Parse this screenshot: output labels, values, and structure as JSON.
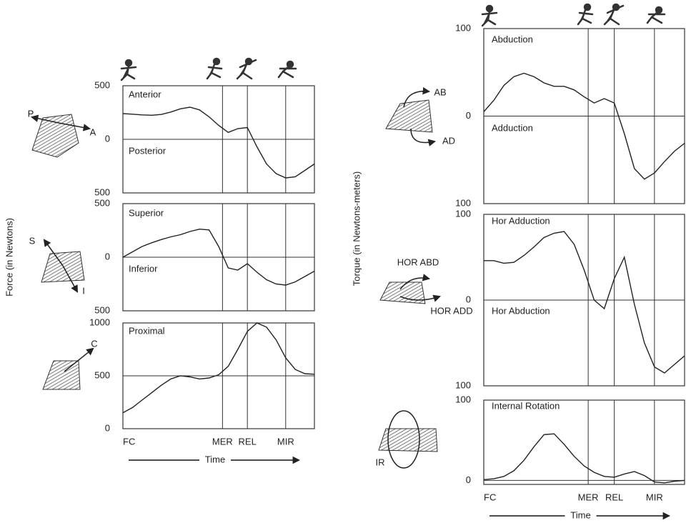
{
  "chart_data": [
    {
      "type": "line",
      "ylabel": "Force (in Newtons)",
      "annotations": [
        "Anterior",
        "Posterior",
        "P",
        "A"
      ],
      "xlim": [
        0,
        100
      ],
      "ylim": [
        -500,
        500
      ],
      "yticks": [
        {
          "value": 500,
          "label": "500"
        },
        0,
        {
          "value": -500,
          "label": "500"
        }
      ],
      "vlines": [
        52,
        65,
        85
      ],
      "color": "#222222",
      "x": [
        0,
        5,
        10,
        15,
        20,
        25,
        30,
        35,
        40,
        45,
        50,
        55,
        60,
        65,
        70,
        75,
        80,
        85,
        90,
        95,
        100
      ],
      "values": [
        240,
        235,
        228,
        225,
        232,
        255,
        285,
        300,
        275,
        210,
        130,
        65,
        100,
        110,
        -70,
        -230,
        -320,
        -360,
        -350,
        -290,
        -230
      ]
    },
    {
      "type": "line",
      "annotations": [
        "Superior",
        "Inferior",
        "S",
        "I"
      ],
      "xlim": [
        0,
        100
      ],
      "ylim": [
        -500,
        500
      ],
      "yticks": [
        {
          "value": 500,
          "label": "500"
        },
        0,
        {
          "value": -500,
          "label": "500"
        }
      ],
      "vlines": [
        52,
        65,
        85
      ],
      "color": "#222222",
      "x": [
        0,
        5,
        10,
        15,
        20,
        25,
        30,
        35,
        40,
        45,
        50,
        55,
        60,
        65,
        70,
        75,
        80,
        85,
        90,
        95,
        100
      ],
      "values": [
        0,
        50,
        100,
        135,
        165,
        190,
        210,
        240,
        262,
        255,
        100,
        -100,
        -120,
        -60,
        -140,
        -210,
        -250,
        -260,
        -230,
        -180,
        -130
      ]
    },
    {
      "type": "line",
      "annotations": [
        "Proximal",
        "C"
      ],
      "xlabel": "Time",
      "xlim": [
        0,
        100
      ],
      "ylim": [
        0,
        1000
      ],
      "yticks": [
        1000,
        500,
        0
      ],
      "xticks": [
        {
          "value": 0,
          "label": "FC"
        },
        {
          "value": 52,
          "label": "MER"
        },
        {
          "value": 65,
          "label": "REL"
        },
        {
          "value": 85,
          "label": "MIR"
        }
      ],
      "color": "#222222",
      "x": [
        0,
        5,
        10,
        15,
        20,
        25,
        30,
        35,
        40,
        45,
        50,
        55,
        60,
        65,
        70,
        75,
        80,
        85,
        90,
        95,
        100
      ],
      "values": [
        150,
        200,
        270,
        340,
        410,
        470,
        500,
        490,
        470,
        480,
        510,
        590,
        750,
        920,
        1000,
        960,
        840,
        670,
        560,
        520,
        515
      ]
    },
    {
      "type": "line",
      "ylabel": "Torque (in Newtons-meters)",
      "annotations": [
        "Abduction",
        "Adduction",
        "AB",
        "AD"
      ],
      "xlim": [
        0,
        100
      ],
      "ylim": [
        -100,
        100
      ],
      "yticks": [
        100,
        0,
        {
          "value": -100,
          "label": "100"
        }
      ],
      "vlines": [
        52,
        65,
        85
      ],
      "color": "#222222",
      "x": [
        0,
        5,
        10,
        15,
        20,
        25,
        30,
        35,
        40,
        45,
        50,
        55,
        60,
        65,
        70,
        75,
        80,
        85,
        90,
        95,
        100
      ],
      "values": [
        5,
        18,
        35,
        45,
        49,
        45,
        38,
        34,
        34,
        30,
        22,
        15,
        20,
        15,
        -20,
        -60,
        -72,
        -65,
        -52,
        -40,
        -31
      ]
    },
    {
      "type": "line",
      "annotations": [
        "Hor Adduction",
        "Hor Abduction",
        "HOR ABD",
        "HOR ADD"
      ],
      "xlim": [
        0,
        100
      ],
      "ylim": [
        -100,
        100
      ],
      "yticks": [
        100,
        0,
        {
          "value": -100,
          "label": "100"
        }
      ],
      "vlines": [
        52,
        65,
        85
      ],
      "color": "#222222",
      "x": [
        0,
        5,
        10,
        15,
        20,
        25,
        30,
        35,
        40,
        45,
        50,
        55,
        60,
        65,
        70,
        75,
        80,
        85,
        90,
        95,
        100
      ],
      "values": [
        46,
        46,
        43,
        44,
        52,
        62,
        73,
        78,
        80,
        65,
        35,
        0,
        -10,
        25,
        50,
        -5,
        -50,
        -78,
        -85,
        -75,
        -65
      ]
    },
    {
      "type": "line",
      "annotations": [
        "Internal Rotation",
        "IR"
      ],
      "xlabel": "Time",
      "xlim": [
        0,
        100
      ],
      "ylim": [
        -5,
        100
      ],
      "yticks": [
        100,
        0
      ],
      "xticks": [
        {
          "value": 0,
          "label": "FC"
        },
        {
          "value": 52,
          "label": "MER"
        },
        {
          "value": 65,
          "label": "REL"
        },
        {
          "value": 85,
          "label": "MIR"
        }
      ],
      "color": "#222222",
      "x": [
        0,
        5,
        10,
        15,
        20,
        25,
        30,
        35,
        40,
        45,
        50,
        55,
        60,
        65,
        70,
        75,
        80,
        85,
        90,
        95,
        100
      ],
      "values": [
        1,
        2,
        5,
        12,
        25,
        42,
        57,
        58,
        45,
        30,
        18,
        10,
        5,
        4,
        8,
        11,
        6,
        -2,
        -3,
        -1,
        0
      ]
    }
  ]
}
